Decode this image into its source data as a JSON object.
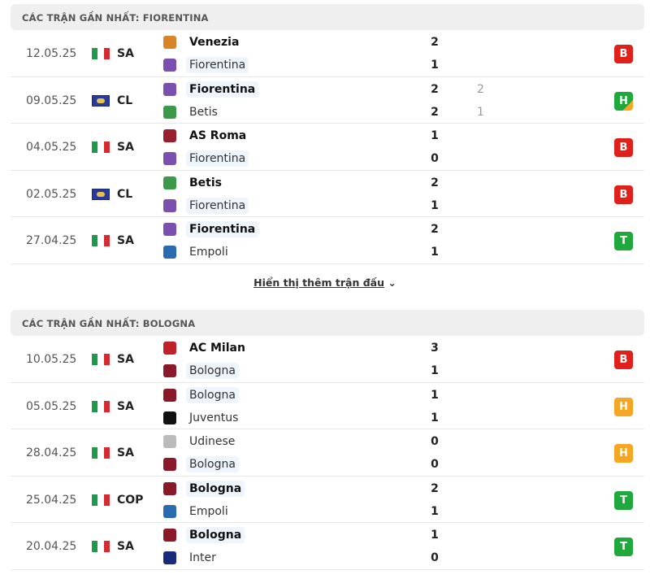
{
  "sections": [
    {
      "title": "CÁC TRẬN GẦN NHẤT: FIORENTINA",
      "matches": [
        {
          "date": "12.05.25",
          "flag": "italy",
          "league": "SA",
          "home": "Venezia",
          "away": "Fiorentina",
          "home_score": "2",
          "away_score": "1",
          "result": "B",
          "home_bold": true,
          "away_bold": false,
          "hl": "away",
          "home_crest": "#d8852a",
          "away_crest": "#7a4fb0"
        },
        {
          "date": "09.05.25",
          "flag": "europe",
          "league": "CL",
          "home": "Fiorentina",
          "away": "Betis",
          "home_score": "2",
          "away_score": "2",
          "home_agg": "2",
          "away_agg": "1",
          "result": "H",
          "home_bold": true,
          "away_bold": false,
          "hl": "home",
          "home_crest": "#7a4fb0",
          "away_crest": "#3a9a4a"
        },
        {
          "date": "04.05.25",
          "flag": "italy",
          "league": "SA",
          "home": "AS Roma",
          "away": "Fiorentina",
          "home_score": "1",
          "away_score": "0",
          "result": "B",
          "home_bold": true,
          "away_bold": false,
          "hl": "away",
          "home_crest": "#9a1f2e",
          "away_crest": "#7a4fb0"
        },
        {
          "date": "02.05.25",
          "flag": "europe",
          "league": "CL",
          "home": "Betis",
          "away": "Fiorentina",
          "home_score": "2",
          "away_score": "1",
          "result": "B",
          "home_bold": true,
          "away_bold": false,
          "hl": "away",
          "home_crest": "#3a9a4a",
          "away_crest": "#7a4fb0"
        },
        {
          "date": "27.04.25",
          "flag": "italy",
          "league": "SA",
          "home": "Fiorentina",
          "away": "Empoli",
          "home_score": "2",
          "away_score": "1",
          "result": "T",
          "home_bold": true,
          "away_bold": false,
          "hl": "home",
          "home_crest": "#7a4fb0",
          "away_crest": "#2a6ab0"
        }
      ]
    },
    {
      "title": "CÁC TRẬN GẦN NHẤT: BOLOGNA",
      "matches": [
        {
          "date": "10.05.25",
          "flag": "italy",
          "league": "SA",
          "home": "AC Milan",
          "away": "Bologna",
          "home_score": "3",
          "away_score": "1",
          "result": "B",
          "home_bold": true,
          "away_bold": false,
          "hl": "away",
          "home_crest": "#c0202a",
          "away_crest": "#8a1a2a"
        },
        {
          "date": "05.05.25",
          "flag": "italy",
          "league": "SA",
          "home": "Bologna",
          "away": "Juventus",
          "home_score": "1",
          "away_score": "1",
          "result": "H",
          "home_bold": false,
          "away_bold": false,
          "hl": "home",
          "home_crest": "#8a1a2a",
          "away_crest": "#111111"
        },
        {
          "date": "28.04.25",
          "flag": "italy",
          "league": "SA",
          "home": "Udinese",
          "away": "Bologna",
          "home_score": "0",
          "away_score": "0",
          "result": "H",
          "home_bold": false,
          "away_bold": false,
          "hl": "away",
          "home_crest": "#bbbbbb",
          "away_crest": "#8a1a2a"
        },
        {
          "date": "25.04.25",
          "flag": "italy",
          "league": "COP",
          "home": "Bologna",
          "away": "Empoli",
          "home_score": "2",
          "away_score": "1",
          "result": "T",
          "home_bold": true,
          "away_bold": false,
          "hl": "home",
          "home_crest": "#8a1a2a",
          "away_crest": "#2a6ab0"
        },
        {
          "date": "20.04.25",
          "flag": "italy",
          "league": "SA",
          "home": "Bologna",
          "away": "Inter",
          "home_score": "1",
          "away_score": "0",
          "result": "T",
          "home_bold": true,
          "away_bold": false,
          "hl": "home",
          "home_crest": "#8a1a2a",
          "away_crest": "#1a2a7a"
        }
      ]
    }
  ],
  "show_more": "Hiển thị thêm trận đấu",
  "colors": {
    "B": "#e0201b",
    "T": "#1fa83c",
    "H": "#f5a623",
    "H_agg_win": "#1fa83c"
  }
}
